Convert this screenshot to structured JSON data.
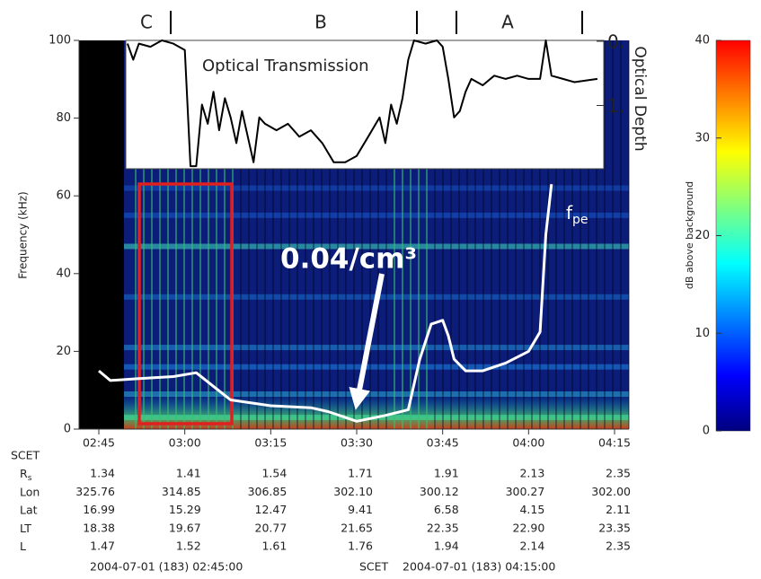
{
  "chart_data": [
    {
      "type": "spectrogram",
      "ylabel": "Frequency (kHz)",
      "xlim": [
        "02:45",
        "04:15"
      ],
      "xticks": [
        "02:45",
        "03:00",
        "03:15",
        "03:30",
        "03:45",
        "04:00",
        "04:15"
      ],
      "ylim": [
        0,
        100
      ],
      "yticks": [
        0,
        20,
        40,
        60,
        80,
        100
      ],
      "regions": [
        "C",
        "B",
        "A"
      ],
      "annotation": "0.04/cm³",
      "series": [
        {
          "name": "f",
          "name_sub": "pe",
          "color": "#ffffff",
          "x": [
            "02:45",
            "02:47",
            "02:52",
            "02:58",
            "03:02",
            "03:05",
            "03:08",
            "03:15",
            "03:22",
            "03:25",
            "03:30",
            "03:35",
            "03:39",
            "03:41",
            "03:43",
            "03:45",
            "03:46",
            "03:47",
            "03:49",
            "03:52",
            "03:56",
            "04:00",
            "04:02",
            "04:03",
            "04:04"
          ],
          "values": [
            15,
            12.5,
            13,
            13.5,
            14.5,
            11,
            7.5,
            6,
            5.5,
            4.5,
            2,
            3.5,
            5,
            18,
            27,
            28,
            24,
            18,
            15,
            15,
            17,
            20,
            25,
            50,
            63
          ]
        }
      ]
    },
    {
      "type": "line",
      "title": "Optical Transmission",
      "y2label": "Optical Depth",
      "y2lim": [
        0,
        2
      ],
      "y2ticks": [
        {
          "value": 0,
          "label": "0."
        },
        {
          "value": 1,
          "label": "1."
        }
      ],
      "series": [
        {
          "color": "#000000",
          "axis": "y2",
          "x": [
            "02:50",
            "02:51",
            "02:52",
            "02:54",
            "02:56",
            "02:58",
            "03:00",
            "03:01",
            "03:02",
            "03:03",
            "03:04",
            "03:05",
            "03:06",
            "03:07",
            "03:08",
            "03:09",
            "03:10",
            "03:11",
            "03:12",
            "03:13",
            "03:14",
            "03:16",
            "03:18",
            "03:20",
            "03:22",
            "03:24",
            "03:26",
            "03:28",
            "03:30",
            "03:32",
            "03:34",
            "03:35",
            "03:36",
            "03:37",
            "03:38",
            "03:39",
            "03:40",
            "03:42",
            "03:44",
            "03:45",
            "03:46",
            "03:47",
            "03:48",
            "03:49",
            "03:50",
            "03:52",
            "03:54",
            "03:56",
            "03:58",
            "04:00",
            "04:02",
            "04:03",
            "04:04",
            "04:06",
            "04:08",
            "04:12"
          ],
          "values": [
            0.05,
            0.3,
            0.05,
            0.1,
            0,
            0.05,
            0.15,
            1.96,
            1.96,
            1,
            1.3,
            0.8,
            1.4,
            0.9,
            1.2,
            1.6,
            1.1,
            1.5,
            1.9,
            1.2,
            1.3,
            1.4,
            1.3,
            1.5,
            1.4,
            1.6,
            1.9,
            1.9,
            1.8,
            1.5,
            1.2,
            1.6,
            1,
            1.3,
            0.9,
            0.3,
            0,
            0.05,
            0,
            0.1,
            0.6,
            1.2,
            1.1,
            0.8,
            0.6,
            0.7,
            0.55,
            0.6,
            0.55,
            0.6,
            0.6,
            0,
            0.55,
            0.6,
            0.65,
            0.6
          ]
        }
      ]
    },
    {
      "type": "colorbar",
      "ylabel": "dB above background",
      "ylim": [
        0,
        40
      ],
      "yticks": [
        0,
        10,
        20,
        30,
        40
      ],
      "colors": [
        "#00007f",
        "#0000ff",
        "#007fff",
        "#00ffff",
        "#7fff7f",
        "#ffff00",
        "#ff7f00",
        "#ff0000"
      ]
    }
  ],
  "ephemeris": {
    "label": "SCET",
    "rows": [
      {
        "label": "R",
        "label_sub": "s",
        "values": [
          "1.34",
          "1.41",
          "1.54",
          "1.71",
          "1.91",
          "2.13",
          "2.35"
        ]
      },
      {
        "label": "Lon",
        "values": [
          "325.76",
          "314.85",
          "306.85",
          "302.10",
          "300.12",
          "300.27",
          "302.00"
        ]
      },
      {
        "label": "Lat",
        "values": [
          "16.99",
          "15.29",
          "12.47",
          "9.41",
          "6.58",
          "4.15",
          "2.11"
        ]
      },
      {
        "label": "LT",
        "values": [
          "18.38",
          "19.67",
          "20.77",
          "21.65",
          "22.35",
          "22.90",
          "23.35"
        ]
      },
      {
        "label": "L",
        "values": [
          "1.47",
          "1.52",
          "1.61",
          "1.76",
          "1.94",
          "2.14",
          "2.35"
        ]
      }
    ],
    "footer": [
      "2004-07-01 (183) 02:45:00",
      "SCET",
      "2004-07-01 (183) 04:15:00"
    ]
  }
}
